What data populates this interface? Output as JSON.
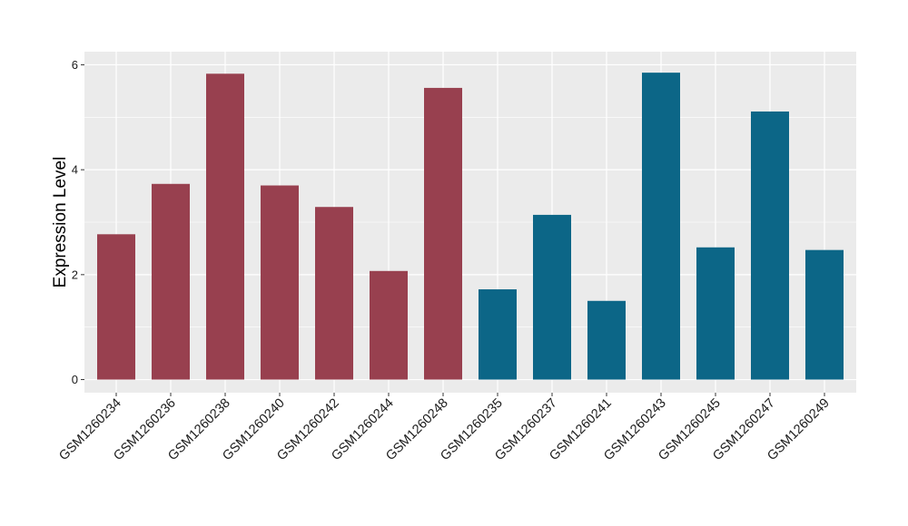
{
  "chart_data": {
    "type": "bar",
    "xlabel": "",
    "ylabel": "Expression Level",
    "ylim": [
      -0.25,
      6.25
    ],
    "yticks": [
      0,
      2,
      4,
      6
    ],
    "grid": true,
    "legend": "none",
    "colors": {
      "panel_background": "#ebebeb",
      "gridline": "#ffffff",
      "group_1": "#98404f",
      "group_2": "#0c6687"
    },
    "categories": [
      "GSM1260234",
      "GSM1260236",
      "GSM1260238",
      "GSM1260240",
      "GSM1260242",
      "GSM1260244",
      "GSM1260248",
      "GSM1260235",
      "GSM1260237",
      "GSM1260241",
      "GSM1260243",
      "GSM1260245",
      "GSM1260247",
      "GSM1260249"
    ],
    "values": [
      2.77,
      3.73,
      5.83,
      3.7,
      3.29,
      2.07,
      5.56,
      1.72,
      3.14,
      1.5,
      5.85,
      2.52,
      5.11,
      2.47
    ],
    "bar_colors": [
      "#98404f",
      "#98404f",
      "#98404f",
      "#98404f",
      "#98404f",
      "#98404f",
      "#98404f",
      "#0c6687",
      "#0c6687",
      "#0c6687",
      "#0c6687",
      "#0c6687",
      "#0c6687",
      "#0c6687"
    ]
  }
}
